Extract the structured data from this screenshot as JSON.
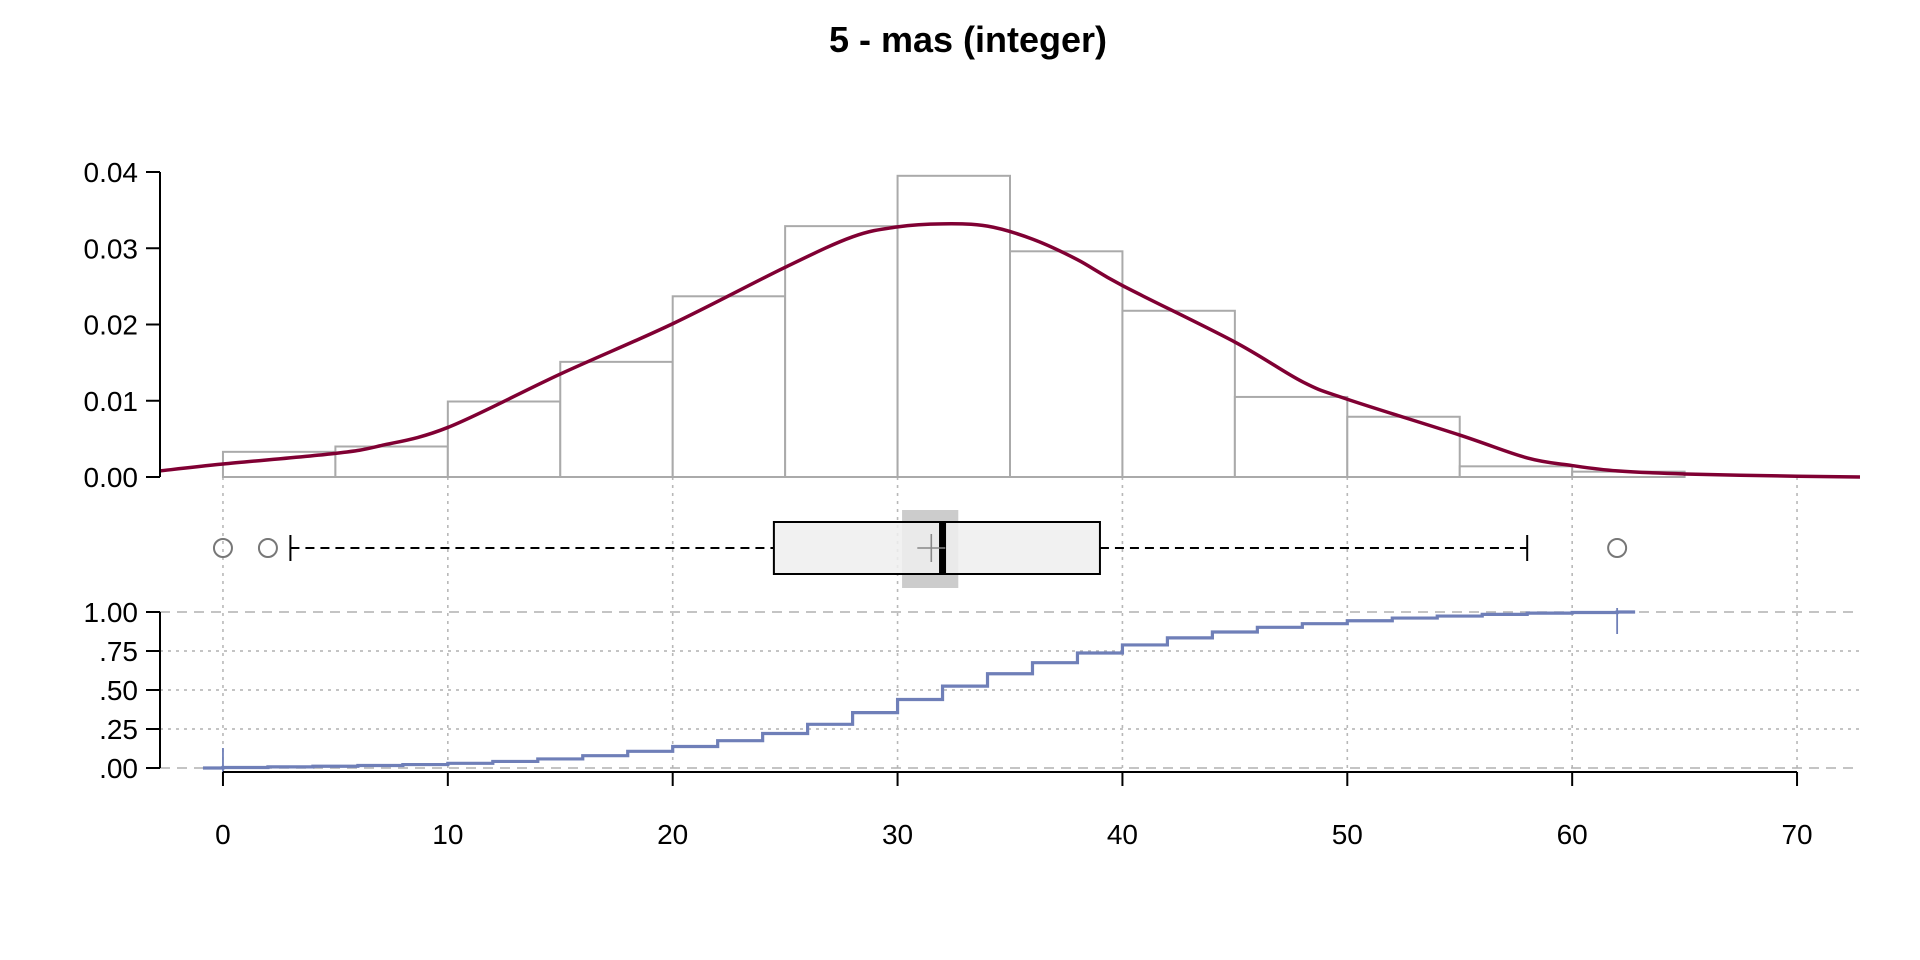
{
  "chart_data": {
    "type": "composite",
    "title": "5 - mas (integer)",
    "x_axis": {
      "ticks": [
        0,
        10,
        20,
        30,
        40,
        50,
        60,
        70
      ],
      "tick_labels": [
        "0",
        "10",
        "20",
        "30",
        "40",
        "50",
        "60",
        "70"
      ],
      "range": [
        -2.8,
        72.8
      ],
      "grid": true
    },
    "histogram": {
      "y_ticks": [
        0,
        0.01,
        0.02,
        0.03,
        0.04
      ],
      "y_tick_labels": [
        "0.00",
        "0.01",
        "0.02",
        "0.03",
        "0.04"
      ],
      "y_range": [
        0,
        0.04
      ],
      "bin_edges": [
        0,
        5,
        10,
        15,
        20,
        25,
        30,
        35,
        40,
        45,
        50,
        55,
        60,
        65
      ],
      "densities": [
        0.0033,
        0.004,
        0.0099,
        0.0151,
        0.0237,
        0.0329,
        0.0395,
        0.0296,
        0.0218,
        0.0105,
        0.0079,
        0.0014,
        0.0007
      ],
      "bar_color": "#aaaaaa"
    },
    "density_curve": {
      "color": "#800033",
      "points": [
        [
          -2.8,
          0.0008
        ],
        [
          0,
          0.0017
        ],
        [
          5,
          0.0031
        ],
        [
          7,
          0.0041
        ],
        [
          10,
          0.0065
        ],
        [
          15,
          0.0135
        ],
        [
          20,
          0.0201
        ],
        [
          25,
          0.0275
        ],
        [
          28,
          0.0315
        ],
        [
          30,
          0.0328
        ],
        [
          32,
          0.0332
        ],
        [
          34,
          0.0329
        ],
        [
          36,
          0.0312
        ],
        [
          38,
          0.0285
        ],
        [
          40,
          0.0251
        ],
        [
          45,
          0.0177
        ],
        [
          48,
          0.0125
        ],
        [
          50,
          0.0102
        ],
        [
          55,
          0.0055
        ],
        [
          58,
          0.0025
        ],
        [
          60,
          0.0015
        ],
        [
          62,
          0.0008
        ],
        [
          65,
          0.0004
        ],
        [
          70,
          0.0001
        ],
        [
          72.8,
          0
        ]
      ]
    },
    "boxplot": {
      "whisker_low": 3,
      "q1": 24.5,
      "median": 32,
      "q3": 39,
      "whisker_high": 58,
      "mean": 31.5,
      "notch": [
        30.2,
        32.7
      ],
      "outliers": [
        0,
        2,
        62
      ],
      "fill_color": "#eeeeee"
    },
    "ecdf": {
      "color": "#6f7fb8",
      "y_ticks": [
        0,
        0.25,
        0.5,
        0.75,
        1
      ],
      "y_tick_labels": [
        ".00",
        ".25",
        ".50",
        ".75",
        "1.00"
      ],
      "y_range": [
        0,
        1
      ],
      "points": [
        [
          0,
          0.003
        ],
        [
          2,
          0.007
        ],
        [
          4,
          0.011
        ],
        [
          6,
          0.016
        ],
        [
          8,
          0.022
        ],
        [
          10,
          0.03
        ],
        [
          12,
          0.042
        ],
        [
          14,
          0.058
        ],
        [
          16,
          0.079
        ],
        [
          18,
          0.107
        ],
        [
          20,
          0.138
        ],
        [
          22,
          0.175
        ],
        [
          24,
          0.221
        ],
        [
          26,
          0.28
        ],
        [
          28,
          0.355
        ],
        [
          30,
          0.439
        ],
        [
          32,
          0.525
        ],
        [
          34,
          0.604
        ],
        [
          36,
          0.675
        ],
        [
          38,
          0.737
        ],
        [
          40,
          0.789
        ],
        [
          42,
          0.834
        ],
        [
          44,
          0.872
        ],
        [
          46,
          0.902
        ],
        [
          48,
          0.925
        ],
        [
          50,
          0.944
        ],
        [
          52,
          0.961
        ],
        [
          54,
          0.974
        ],
        [
          56,
          0.985
        ],
        [
          58,
          0.993
        ],
        [
          60,
          0.997
        ],
        [
          62,
          1
        ]
      ],
      "first_x": 0,
      "last_x": 62
    }
  }
}
